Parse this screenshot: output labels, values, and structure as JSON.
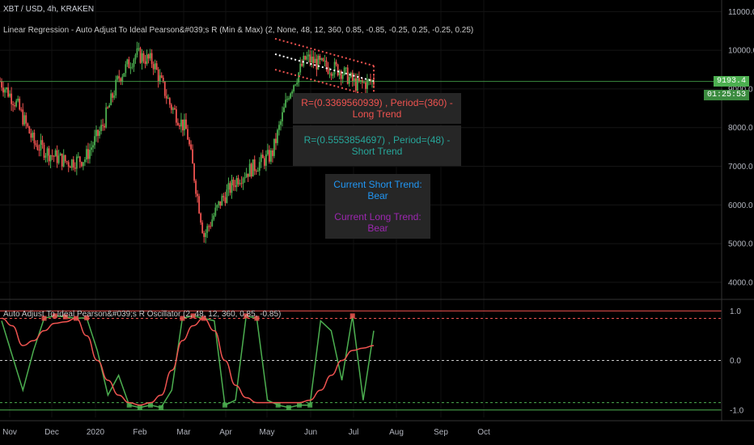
{
  "header": {
    "symbol": "XBT / USD, 4h, KRAKEN",
    "study_main": "Linear Regression - Auto Adjust To Ideal Pearson&#039;s R (Min & Max) (2, None, 48, 12, 360, 0.85, -0.85, -0.25, 0.25, -0.25, 0.25)",
    "study_osc": "Auto Adjust To Ideal Pearson&#039;s R Oscillator (2, 48, 12, 360, 0.85, -0.85)"
  },
  "price_labels": {
    "last_price": "9193.4",
    "countdown": "01:25:53"
  },
  "info": {
    "long_trend": "R=(0.3369560939) , Period=(360) - Long Trend",
    "short_trend": "R=(0.5553854697) , Period=(48) - Short Trend",
    "current_short": "Current Short Trend: Bear",
    "current_long": "Current Long Trend: Bear"
  },
  "colors": {
    "background": "#000000",
    "up": "#4caf50",
    "down": "#ef5350",
    "line_green": "#4caf50",
    "line_red": "#ef5350",
    "blue_text": "#2196f3",
    "purple_text": "#9c27b0",
    "grid": "#1a1a1a"
  },
  "chart_data": [
    {
      "type": "candlestick",
      "title": "XBT / USD, 4h, KRAKEN",
      "x_ticks": [
        "Nov",
        "Dec",
        "2020",
        "Feb",
        "Mar",
        "Apr",
        "May",
        "Jun",
        "Jul",
        "Aug",
        "Sep",
        "Oct"
      ],
      "y_ticks": [
        "11000.0",
        "10000.0",
        "9000.0",
        "8000.0",
        "7000.0",
        "6000.0",
        "5000.0",
        "4000.0"
      ],
      "ylim": [
        3600,
        11300
      ],
      "price_path": [
        [
          "Nov",
          9200
        ],
        [
          "Nov",
          8600
        ],
        [
          "Dec",
          7600
        ],
        [
          "Dec",
          7300
        ],
        [
          "Dec",
          7100
        ],
        [
          "2020",
          7200
        ],
        [
          "2020",
          8000
        ],
        [
          "Feb",
          9300
        ],
        [
          "Feb",
          9900
        ],
        [
          "Feb",
          9700
        ],
        [
          "Mar",
          8600
        ],
        [
          "Mar",
          7900
        ],
        [
          "Mar",
          5200
        ],
        [
          "Mar",
          6100
        ],
        [
          "Apr",
          6700
        ],
        [
          "Apr",
          7000
        ],
        [
          "Apr",
          7300
        ],
        [
          "May",
          8900
        ],
        [
          "May",
          9800
        ],
        [
          "Jun",
          9600
        ],
        [
          "Jun",
          9500
        ],
        [
          "Jul",
          9100
        ],
        [
          "Jul",
          9200
        ]
      ],
      "horizontal_line": 9193.4,
      "regression_channel": {
        "start_price": 9900,
        "end_price": 9200,
        "upper_offset": 400,
        "lower_offset": 400
      }
    },
    {
      "type": "line",
      "title": "Auto Adjust To Ideal Pearson&#039;s R Oscillator (2, 48, 12, 360, 0.85, -0.85)",
      "y_ticks": [
        "1.0",
        "0.0",
        "-1.0"
      ],
      "ylim": [
        -1.15,
        1.2
      ],
      "levels": [
        1.0,
        0.85,
        0.0,
        -0.85,
        -1.0
      ],
      "series": [
        {
          "color": "#4caf50",
          "values": [
            0.8,
            0.1,
            -0.6,
            0.2,
            0.85,
            0.9,
            0.88,
            0.85,
            0.86,
            0.2,
            -0.7,
            -0.3,
            -0.9,
            -0.95,
            -0.9,
            -0.95,
            -0.6,
            0.85,
            0.9,
            0.85,
            0.8,
            -0.9,
            -0.8,
            0.9,
            0.85,
            -0.8,
            -0.9,
            -0.95,
            -0.9,
            -0.9,
            0.8,
            0.6,
            -0.4,
            0.9,
            -0.8,
            0.6
          ]
        },
        {
          "color": "#ef5350",
          "values": [
            0.85,
            0.7,
            0.3,
            0.4,
            0.6,
            0.75,
            0.78,
            0.85,
            0.5,
            0.0,
            -0.4,
            -0.7,
            -0.85,
            -0.9,
            -0.85,
            -0.7,
            -0.2,
            0.4,
            0.7,
            0.85,
            0.6,
            0.0,
            -0.5,
            -0.75,
            -0.85,
            -0.85,
            -0.85,
            -0.85,
            -0.85,
            -0.8,
            -0.6,
            -0.3,
            0.0,
            0.2,
            0.25,
            0.3
          ]
        }
      ]
    }
  ]
}
